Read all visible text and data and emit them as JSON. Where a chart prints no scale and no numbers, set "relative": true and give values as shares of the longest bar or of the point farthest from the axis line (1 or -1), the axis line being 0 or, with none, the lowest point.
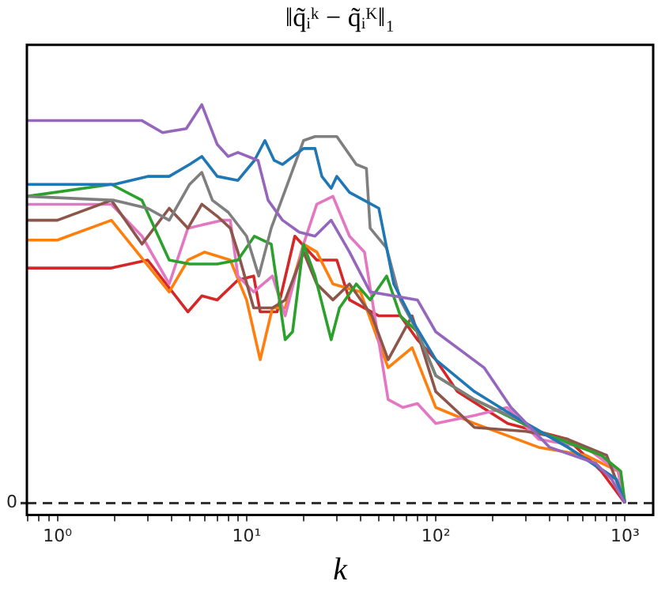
{
  "chart_data": {
    "type": "line",
    "title": "‖q̃ᵢᵏ − q̃ᵢᴷ‖₁",
    "xlabel": "k",
    "relative": true,
    "log": "x",
    "xlim": [
      0.69,
      1410
    ],
    "xticks": [
      {
        "value": 0.7,
        "label": null
      },
      {
        "value": 0.8,
        "label": null
      },
      {
        "value": 0.9,
        "label": null
      },
      {
        "value": 1,
        "label": "10⁰"
      },
      {
        "value": 2,
        "label": null
      },
      {
        "value": 3,
        "label": null
      },
      {
        "value": 4,
        "label": null
      },
      {
        "value": 5,
        "label": null
      },
      {
        "value": 6,
        "label": null
      },
      {
        "value": 7,
        "label": null
      },
      {
        "value": 8,
        "label": null
      },
      {
        "value": 9,
        "label": null
      },
      {
        "value": 10,
        "label": "10¹"
      },
      {
        "value": 20,
        "label": null
      },
      {
        "value": 30,
        "label": null
      },
      {
        "value": 40,
        "label": null
      },
      {
        "value": 50,
        "label": null
      },
      {
        "value": 60,
        "label": null
      },
      {
        "value": 70,
        "label": null
      },
      {
        "value": 80,
        "label": null
      },
      {
        "value": 90,
        "label": null
      },
      {
        "value": 100,
        "label": "10²"
      },
      {
        "value": 200,
        "label": null
      },
      {
        "value": 300,
        "label": null
      },
      {
        "value": 400,
        "label": null
      },
      {
        "value": 500,
        "label": null
      },
      {
        "value": 600,
        "label": null
      },
      {
        "value": 700,
        "label": null
      },
      {
        "value": 800,
        "label": null
      },
      {
        "value": 900,
        "label": null
      },
      {
        "value": 1000,
        "label": "10³"
      }
    ],
    "ref_lines": [
      {
        "axis": "y",
        "value": 0,
        "label": "0",
        "color": "#333333",
        "line_style": "dashed"
      }
    ],
    "series": [
      {
        "color": "#9467bd",
        "x": [
          0.69,
          2.8,
          3.6,
          4.8,
          5.8,
          7,
          8,
          9,
          11.5,
          13,
          15.5,
          19,
          23,
          28,
          35,
          45,
          80,
          100,
          180,
          250,
          400,
          700,
          850,
          1000
        ],
        "values": [
          0.96,
          0.96,
          0.93,
          0.94,
          1.0,
          0.9,
          0.87,
          0.88,
          0.86,
          0.76,
          0.71,
          0.68,
          0.67,
          0.71,
          0.63,
          0.53,
          0.51,
          0.43,
          0.34,
          0.24,
          0.14,
          0.1,
          0.06,
          0
        ]
      },
      {
        "color": "#1f77b4",
        "x": [
          0.69,
          2,
          3,
          3.9,
          5,
          5.8,
          7,
          9,
          11,
          12.5,
          14,
          15.5,
          20,
          23,
          25,
          28,
          30,
          35,
          50,
          60,
          77,
          100,
          160,
          300,
          500,
          900,
          1000
        ],
        "values": [
          0.8,
          0.8,
          0.82,
          0.82,
          0.85,
          0.87,
          0.82,
          0.81,
          0.86,
          0.91,
          0.86,
          0.85,
          0.89,
          0.89,
          0.82,
          0.79,
          0.82,
          0.78,
          0.74,
          0.55,
          0.45,
          0.36,
          0.28,
          0.2,
          0.14,
          0.06,
          0
        ]
      },
      {
        "color": "#7f7f7f",
        "x": [
          0.69,
          2,
          3,
          3.9,
          5,
          5.8,
          6.6,
          8,
          10,
          11.6,
          13.5,
          20,
          23,
          30,
          38,
          43,
          45,
          55,
          65,
          80,
          100,
          160,
          300,
          500,
          900,
          1000
        ],
        "values": [
          0.77,
          0.76,
          0.74,
          0.71,
          0.8,
          0.83,
          0.76,
          0.73,
          0.67,
          0.57,
          0.69,
          0.91,
          0.92,
          0.92,
          0.85,
          0.84,
          0.69,
          0.64,
          0.51,
          0.43,
          0.32,
          0.26,
          0.2,
          0.14,
          0.06,
          0
        ]
      },
      {
        "color": "#2ca02c",
        "x": [
          0.69,
          1.93,
          2.8,
          3.9,
          5,
          7,
          9,
          11,
          13.5,
          16,
          17.5,
          20,
          23,
          28,
          31,
          38,
          45,
          55,
          65,
          80,
          100,
          160,
          350,
          750,
          950,
          1000
        ],
        "values": [
          0.77,
          0.8,
          0.76,
          0.61,
          0.6,
          0.6,
          0.61,
          0.67,
          0.65,
          0.41,
          0.43,
          0.65,
          0.57,
          0.41,
          0.49,
          0.55,
          0.51,
          0.57,
          0.47,
          0.43,
          0.32,
          0.26,
          0.18,
          0.12,
          0.08,
          0
        ]
      },
      {
        "color": "#8c564b",
        "x": [
          0.69,
          1,
          1.93,
          2.8,
          3.9,
          4.9,
          5.8,
          7,
          8.2,
          9,
          10.9,
          13.7,
          16,
          20,
          23.5,
          28.6,
          35,
          46,
          56,
          75,
          100,
          160,
          300,
          500,
          800,
          1000
        ],
        "values": [
          0.71,
          0.71,
          0.76,
          0.65,
          0.74,
          0.69,
          0.75,
          0.72,
          0.69,
          0.63,
          0.49,
          0.49,
          0.51,
          0.63,
          0.55,
          0.51,
          0.55,
          0.47,
          0.36,
          0.47,
          0.28,
          0.19,
          0.18,
          0.16,
          0.12,
          0
        ]
      },
      {
        "color": "#e377c2",
        "x": [
          0.69,
          1.93,
          2.8,
          3.9,
          4.9,
          7.5,
          8.2,
          9,
          10.9,
          13.7,
          16,
          20,
          23.5,
          28.6,
          35,
          42,
          56,
          67,
          80,
          100,
          161,
          238,
          350,
          620,
          920,
          1000
        ],
        "values": [
          0.75,
          0.75,
          0.67,
          0.55,
          0.69,
          0.71,
          0.71,
          0.57,
          0.53,
          0.57,
          0.47,
          0.65,
          0.75,
          0.77,
          0.67,
          0.63,
          0.26,
          0.24,
          0.25,
          0.2,
          0.22,
          0.24,
          0.16,
          0.14,
          0.08,
          0
        ]
      },
      {
        "color": "#ff7f0e",
        "x": [
          0.69,
          1,
          1.93,
          3.9,
          4.9,
          6,
          8.2,
          10,
          11.8,
          13.7,
          16,
          20,
          23.5,
          28.6,
          40,
          56,
          75,
          100,
          160,
          350,
          620,
          920,
          1000
        ],
        "values": [
          0.66,
          0.66,
          0.71,
          0.53,
          0.61,
          0.63,
          0.61,
          0.51,
          0.36,
          0.49,
          0.49,
          0.65,
          0.63,
          0.55,
          0.53,
          0.34,
          0.39,
          0.24,
          0.2,
          0.14,
          0.12,
          0.08,
          0
        ]
      },
      {
        "color": "#d62728",
        "x": [
          0.69,
          1.93,
          3,
          4.9,
          5.8,
          7,
          9,
          10.9,
          11.8,
          14.5,
          18,
          23.5,
          30,
          35,
          50,
          65,
          80,
          100,
          130,
          240,
          500,
          750,
          1000
        ],
        "values": [
          0.59,
          0.59,
          0.61,
          0.48,
          0.52,
          0.51,
          0.56,
          0.57,
          0.48,
          0.48,
          0.67,
          0.61,
          0.61,
          0.51,
          0.47,
          0.47,
          0.41,
          0.36,
          0.28,
          0.2,
          0.16,
          0.08,
          0
        ]
      }
    ]
  }
}
